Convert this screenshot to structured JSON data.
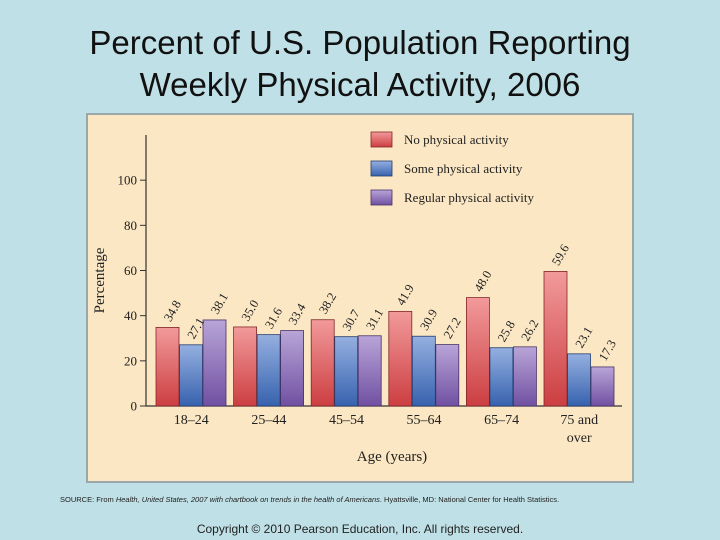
{
  "slide": {
    "title_line1": "Percent of U.S. Population Reporting",
    "title_line2": "Weekly Physical Activity, 2006",
    "source_prefix": "SOURCE: From ",
    "source_italic": "Health, United States, 2007 with chartbook on trends in the health of Americans",
    "source_suffix": ". Hyattsville, MD: National Center for Health Statistics.",
    "copyright": "Copyright © 2010 Pearson Education, Inc. All rights reserved."
  },
  "colors": {
    "background": "#bfe0e6",
    "panel": "#fbe7c4",
    "no_activity": "#e8474a",
    "some_activity": "#3f6fc6",
    "regular_activity": "#7f5bb8"
  },
  "chart_data": {
    "type": "bar",
    "title": "",
    "xlabel": "Age (years)",
    "ylabel": "Percentage",
    "ylim": [
      0,
      120
    ],
    "yticks": [
      0,
      20,
      40,
      60,
      80,
      100
    ],
    "legend_position": "top-right",
    "categories": [
      [
        "18–24"
      ],
      [
        "25–44"
      ],
      [
        "45–54"
      ],
      [
        "55–64"
      ],
      [
        "65–74"
      ],
      [
        "75 and",
        "over"
      ]
    ],
    "series": [
      {
        "name": "No physical activity",
        "color": "#e8474a",
        "values": [
          34.8,
          35.0,
          38.2,
          41.9,
          48.0,
          59.6
        ]
      },
      {
        "name": "Some physical  activity",
        "color": "#3f6fc6",
        "values": [
          27.1,
          31.6,
          30.7,
          30.9,
          25.8,
          23.1
        ]
      },
      {
        "name": "Regular physical  activity",
        "color": "#7f5bb8",
        "values": [
          38.1,
          33.4,
          31.1,
          27.2,
          26.2,
          17.3
        ]
      }
    ]
  }
}
